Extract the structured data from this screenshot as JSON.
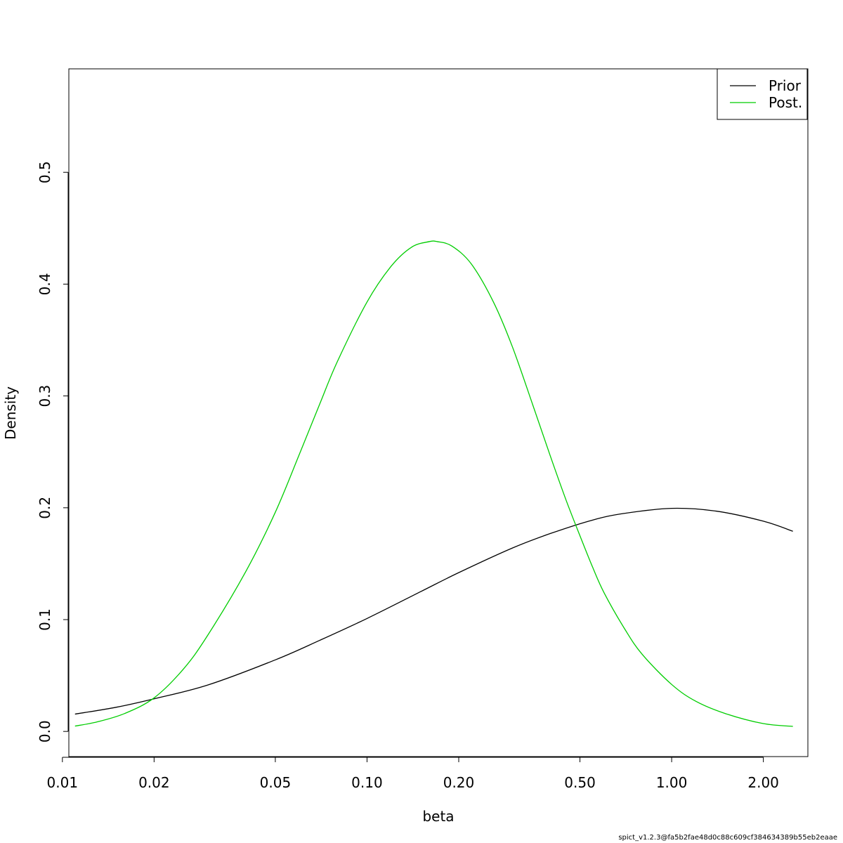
{
  "footer": {
    "version_text": "spict_v1.2.3@fa5b2fae48d0c88c609cf384634389b55eb2eaae"
  },
  "chart_data": {
    "type": "line",
    "title": "",
    "xlabel": "beta",
    "ylabel": "Density",
    "x_scale": "log",
    "xlim": [
      0.0105,
      2.8
    ],
    "ylim": [
      -0.0225,
      0.5925
    ],
    "x_ticks": [
      0.01,
      0.02,
      0.05,
      0.1,
      0.2,
      0.5,
      1.0,
      2.0
    ],
    "x_tick_labels": [
      "0.01",
      "0.02",
      "0.05",
      "0.10",
      "0.20",
      "0.50",
      "1.00",
      "2.00"
    ],
    "y_ticks": [
      0.0,
      0.1,
      0.2,
      0.3,
      0.4,
      0.5
    ],
    "y_tick_labels": [
      "0.0",
      "0.1",
      "0.2",
      "0.3",
      "0.4",
      "0.5"
    ],
    "grid": false,
    "legend": {
      "position": "top-right",
      "entries": [
        "Prior",
        "Post."
      ]
    },
    "series": [
      {
        "name": "Prior",
        "color": "#000000",
        "x": [
          0.011,
          0.015,
          0.02,
          0.03,
          0.05,
          0.07,
          0.1,
          0.15,
          0.2,
          0.3,
          0.4,
          0.55,
          0.7,
          1.0,
          1.4,
          2.0,
          2.5
        ],
        "values": [
          0.0155,
          0.0216,
          0.0292,
          0.0415,
          0.064,
          0.0815,
          0.101,
          0.125,
          0.142,
          0.164,
          0.177,
          0.189,
          0.195,
          0.1995,
          0.197,
          0.188,
          0.179
        ]
      },
      {
        "name": "Post.",
        "color": "#00cd00",
        "x": [
          0.011,
          0.013,
          0.016,
          0.02,
          0.025,
          0.03,
          0.04,
          0.05,
          0.06,
          0.07,
          0.08,
          0.1,
          0.12,
          0.14,
          0.16,
          0.17,
          0.19,
          0.22,
          0.26,
          0.3,
          0.35,
          0.4,
          0.45,
          0.5,
          0.55,
          0.6,
          0.7,
          0.8,
          1.0,
          1.2,
          1.5,
          2.0,
          2.5
        ],
        "values": [
          0.0048,
          0.0085,
          0.016,
          0.03,
          0.056,
          0.086,
          0.143,
          0.196,
          0.248,
          0.293,
          0.331,
          0.384,
          0.416,
          0.433,
          0.438,
          0.438,
          0.434,
          0.418,
          0.384,
          0.344,
          0.292,
          0.246,
          0.207,
          0.175,
          0.147,
          0.124,
          0.092,
          0.069,
          0.042,
          0.027,
          0.016,
          0.007,
          0.0045
        ]
      }
    ]
  }
}
